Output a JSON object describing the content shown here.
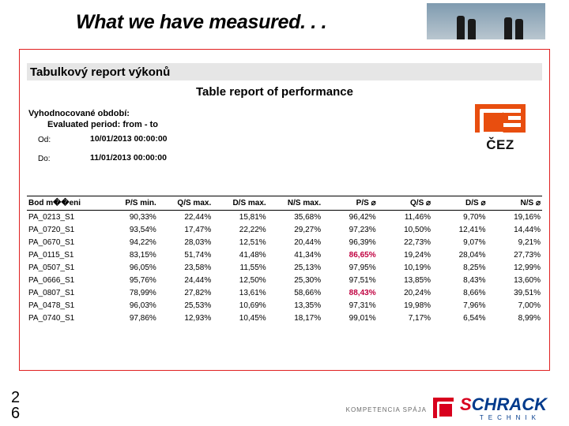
{
  "slide_title": "What we have measured. . .",
  "report_title_bar": "Tabulkový report výkonů",
  "overlay_title": "Table report of performance",
  "period": {
    "label_cs": "Vyhodnocované období:",
    "label_en": "Evaluated period: from - to",
    "from_label": "Od:",
    "from_value": "10/01/2013  00:00:00",
    "to_label": "Do:",
    "to_value": "11/01/2013  00:00:00"
  },
  "cez_label": "ČEZ",
  "table": {
    "columns": [
      "Bod m��eni",
      "P/S min.",
      "Q/S max.",
      "D/S max.",
      "N/S max.",
      "P/S ⌀",
      "Q/S ⌀",
      "D/S ⌀",
      "N/S ⌀"
    ],
    "rows": [
      {
        "c": [
          "PA_0213_S1",
          "90,33%",
          "22,44%",
          "15,81%",
          "35,68%",
          "96,42%",
          "11,46%",
          "9,70%",
          "19,16%"
        ],
        "hl": []
      },
      {
        "c": [
          "PA_0720_S1",
          "93,54%",
          "17,47%",
          "22,22%",
          "29,27%",
          "97,23%",
          "10,50%",
          "12,41%",
          "14,44%"
        ],
        "hl": []
      },
      {
        "c": [
          "PA_0670_S1",
          "94,22%",
          "28,03%",
          "12,51%",
          "20,44%",
          "96,39%",
          "22,73%",
          "9,07%",
          "9,21%"
        ],
        "hl": []
      },
      {
        "c": [
          "PA_0115_S1",
          "83,15%",
          "51,74%",
          "41,48%",
          "41,34%",
          "86,65%",
          "19,24%",
          "28,04%",
          "27,73%"
        ],
        "hl": [
          5
        ]
      },
      {
        "c": [
          "PA_0507_S1",
          "96,05%",
          "23,58%",
          "11,55%",
          "25,13%",
          "97,95%",
          "10,19%",
          "8,25%",
          "12,99%"
        ],
        "hl": []
      },
      {
        "c": [
          "PA_0666_S1",
          "95,76%",
          "24,44%",
          "12,50%",
          "25,30%",
          "97,51%",
          "13,85%",
          "8,43%",
          "13,60%"
        ],
        "hl": []
      },
      {
        "c": [
          "PA_0807_S1",
          "78,99%",
          "27,82%",
          "13,61%",
          "58,66%",
          "88,43%",
          "20,24%",
          "8,66%",
          "39,51%"
        ],
        "hl": [
          5
        ]
      },
      {
        "c": [
          "PA_0478_S1",
          "96,03%",
          "25,53%",
          "10,69%",
          "13,35%",
          "97,31%",
          "19,98%",
          "7,96%",
          "7,00%"
        ],
        "hl": []
      },
      {
        "c": [
          "PA_0740_S1",
          "97,86%",
          "12,93%",
          "10,45%",
          "18,17%",
          "99,01%",
          "7,17%",
          "6,54%",
          "8,99%"
        ],
        "hl": []
      }
    ]
  },
  "page_number": "2\n6",
  "footer": {
    "kompetencia": "KOMPETENCIA SPÁJA",
    "brand_s": "S",
    "brand_rest": "CHRACK",
    "sub": "TECHNIK"
  }
}
